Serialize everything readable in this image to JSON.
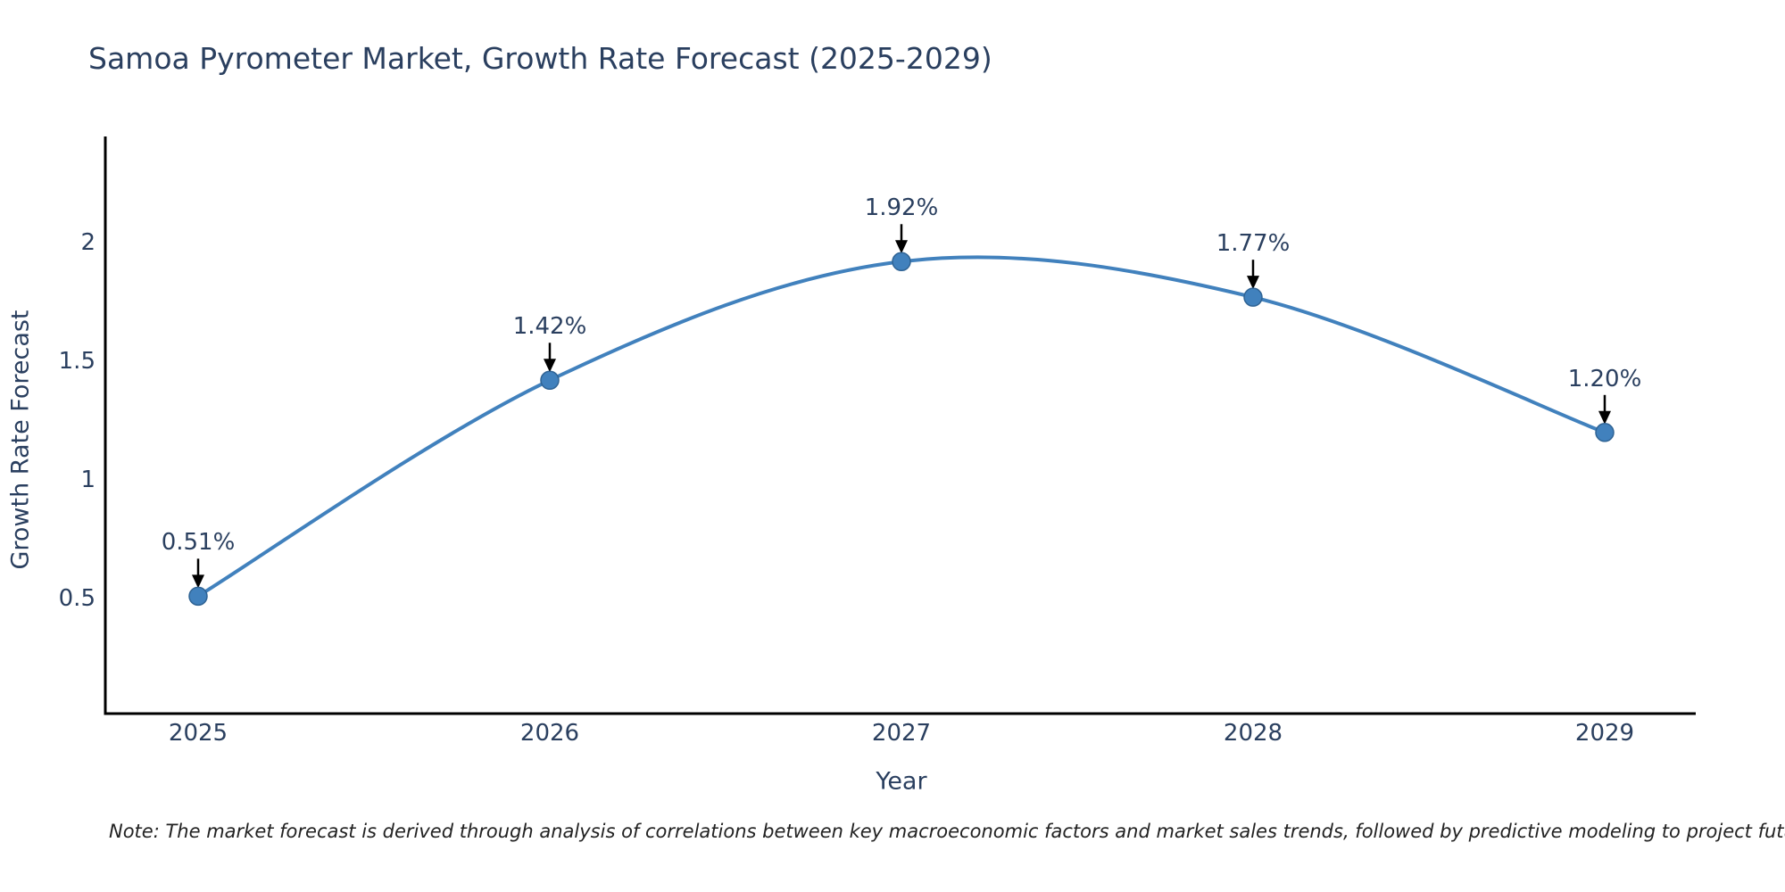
{
  "chart_data": {
    "type": "line",
    "title": "Samoa Pyrometer Market, Growth Rate Forecast (2025-2029)",
    "xlabel": "Year",
    "ylabel": "Growth Rate Forecast",
    "categories": [
      "2025",
      "2026",
      "2027",
      "2028",
      "2029"
    ],
    "series": [
      {
        "name": "Growth Rate Forecast",
        "values": [
          0.51,
          1.42,
          1.92,
          1.77,
          1.2
        ],
        "point_labels": [
          "0.51%",
          "1.42%",
          "1.92%",
          "1.77%",
          "1.20%"
        ]
      }
    ],
    "y_ticks": [
      2,
      1.5,
      1,
      0.5
    ],
    "y_tick_labels": [
      "2",
      "1.5",
      "1",
      "0.5"
    ],
    "ylim": [
      0.02,
      2.45
    ],
    "grid": false,
    "legend_position": "none",
    "line_shape": "spline",
    "annotations_style": "value labels above points with downward black arrows",
    "note": "Note: The market forecast is derived through analysis of correlations between key macroeconomic factors and market sales trends, followed by predictive modeling to project future sales.",
    "colors": {
      "line": "#4181bd",
      "marker": "#4181bd",
      "marker_edge": "#2f6394",
      "axis": "#000000",
      "text": "#2a3f5f",
      "note_text": "#222222",
      "arrow": "#000000",
      "background": "#ffffff"
    }
  }
}
